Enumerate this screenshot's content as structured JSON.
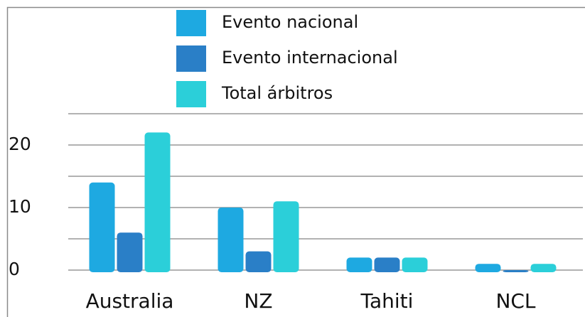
{
  "chart_data": {
    "type": "bar",
    "categories": [
      "Australia",
      "NZ",
      "Tahiti",
      "NCL"
    ],
    "series": [
      {
        "name": "Evento nacional",
        "color": "#1ea9e1",
        "values": [
          14,
          10,
          2,
          1
        ]
      },
      {
        "name": "Evento internacional",
        "color": "#2a7fc7",
        "values": [
          6,
          3,
          2,
          0
        ]
      },
      {
        "name": "Total árbitros",
        "color": "#2bcfd9",
        "values": [
          22,
          11,
          2,
          1
        ]
      }
    ],
    "ylim": [
      0,
      25
    ],
    "yticks": [
      0,
      10,
      20
    ],
    "minor_yticks": [
      5,
      15,
      25
    ],
    "grid": true
  }
}
